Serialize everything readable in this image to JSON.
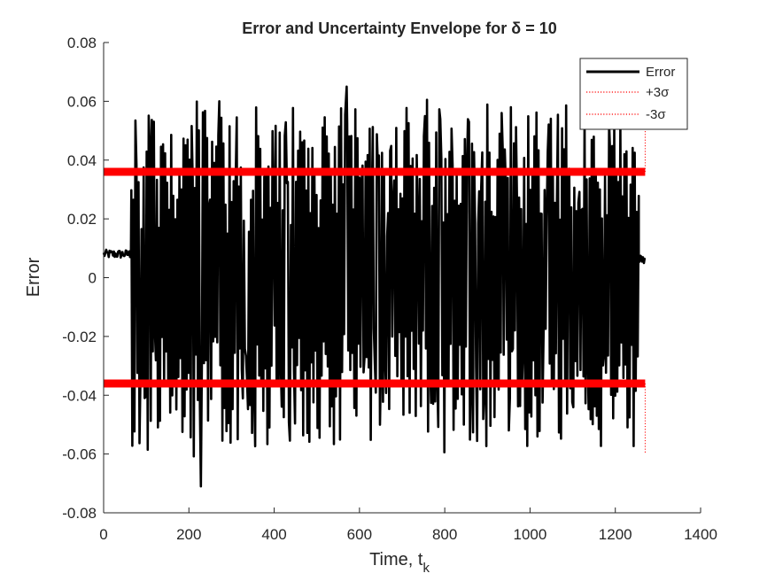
{
  "chart_data": {
    "type": "line",
    "title": "Error and Uncertainty Envelope for δ = 10",
    "xlabel": "Time, t",
    "xlabel_subscript": "k",
    "ylabel": "Error",
    "xlim": [
      0,
      1400
    ],
    "ylim": [
      -0.08,
      0.08
    ],
    "xticks": [
      0,
      200,
      400,
      600,
      800,
      1000,
      1200,
      1400
    ],
    "yticks": [
      -0.08,
      -0.06,
      -0.04,
      -0.02,
      0,
      0.02,
      0.04,
      0.06,
      0.08
    ],
    "xtick_labels": [
      "0",
      "200",
      "400",
      "600",
      "800",
      "1000",
      "1200",
      "1400"
    ],
    "ytick_labels": [
      "-0.08",
      "-0.06",
      "-0.04",
      "-0.02",
      "0",
      "0.02",
      "0.04",
      "0.06",
      "0.08"
    ],
    "grid": false,
    "legend_position": "top-right",
    "series": [
      {
        "name": "Error",
        "color": "#000000",
        "style": "solid",
        "description_of_values": "Error signal near 0.008 for t < 65, then oscillating rapidly between about -0.06 and +0.06 until t ≈ 1255, then settling near 0.006 until t = 1270",
        "quiet_start": {
          "t_range": [
            0,
            65
          ],
          "level": 0.008
        },
        "oscillation": {
          "t_range": [
            65,
            1255
          ],
          "min": -0.071,
          "max": 0.065
        },
        "quiet_end": {
          "t_range": [
            1255,
            1270
          ],
          "level": 0.006
        },
        "extremes": {
          "max": {
            "t": 570,
            "y": 0.065
          },
          "min": {
            "t": 228,
            "y": -0.071
          }
        }
      },
      {
        "name": "+3σ",
        "color": "#ff0000",
        "style": "dotted",
        "t_range": [
          0,
          1270
        ],
        "value": 0.036,
        "end_spike_to": 0.06
      },
      {
        "name": "-3σ",
        "color": "#ff0000",
        "style": "dotted",
        "t_range": [
          0,
          1270
        ],
        "value": -0.036,
        "end_spike_to": -0.06
      }
    ]
  }
}
